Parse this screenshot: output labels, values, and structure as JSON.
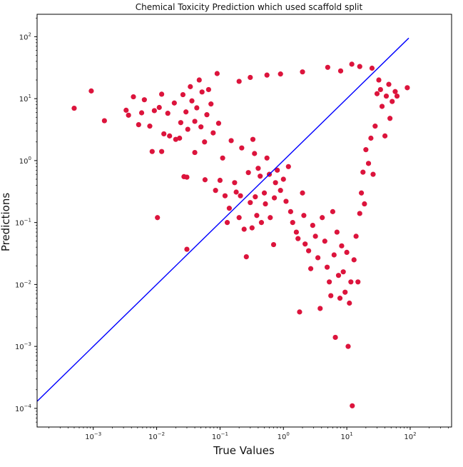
{
  "chart_data": {
    "type": "scatter",
    "title": "Chemical Toxicity Prediction which used scaffold split",
    "xlabel": "True Values",
    "ylabel": "Predictions",
    "x_scale": "log",
    "y_scale": "log",
    "xlim": [
      0.00013,
      450
    ],
    "ylim": [
      5e-05,
      230
    ],
    "x_ticks": [
      {
        "value": 0.001,
        "base": "10",
        "exp": "−3"
      },
      {
        "value": 0.01,
        "base": "10",
        "exp": "−2"
      },
      {
        "value": 0.1,
        "base": "10",
        "exp": "−1"
      },
      {
        "value": 1,
        "base": "10",
        "exp": "0"
      },
      {
        "value": 10,
        "base": "10",
        "exp": "1"
      },
      {
        "value": 100,
        "base": "10",
        "exp": "2"
      }
    ],
    "y_ticks": [
      {
        "value": 0.0001,
        "base": "10",
        "exp": "−4"
      },
      {
        "value": 0.001,
        "base": "10",
        "exp": "−3"
      },
      {
        "value": 0.01,
        "base": "10",
        "exp": "−2"
      },
      {
        "value": 0.1,
        "base": "10",
        "exp": "−1"
      },
      {
        "value": 1,
        "base": "10",
        "exp": "0"
      },
      {
        "value": 10,
        "base": "10",
        "exp": "1"
      },
      {
        "value": 100,
        "base": "10",
        "exp": "2"
      }
    ],
    "grid": false,
    "point_color": "#dc143c",
    "line_color": "#0000ff",
    "reference_line": {
      "x": [
        0.00011,
        95
      ],
      "y": [
        0.00011,
        95
      ]
    },
    "series": [
      {
        "points": [
          [
            0.0005,
            7
          ],
          [
            0.00093,
            13.3
          ],
          [
            0.0015,
            4.4
          ],
          [
            0.0033,
            6.5
          ],
          [
            0.0036,
            5.4
          ],
          [
            0.0043,
            10.7
          ],
          [
            0.0052,
            3.8
          ],
          [
            0.0058,
            5.9
          ],
          [
            0.0064,
            9.6
          ],
          [
            0.0078,
            3.6
          ],
          [
            0.0085,
            1.4
          ],
          [
            0.0092,
            6.4
          ],
          [
            0.0103,
            0.12
          ],
          [
            0.011,
            7.2
          ],
          [
            0.012,
            1.4
          ],
          [
            0.012,
            11.8
          ],
          [
            0.013,
            2.7
          ],
          [
            0.015,
            5.8
          ],
          [
            0.016,
            2.5
          ],
          [
            0.019,
            8.5
          ],
          [
            0.02,
            2.2
          ],
          [
            0.023,
            2.3
          ],
          [
            0.024,
            4.1
          ],
          [
            0.026,
            11.6
          ],
          [
            0.027,
            0.55
          ],
          [
            0.029,
            6.1
          ],
          [
            0.03,
            0.54
          ],
          [
            0.03,
            0.037
          ],
          [
            0.031,
            3.2
          ],
          [
            0.034,
            15.6
          ],
          [
            0.036,
            9.2
          ],
          [
            0.04,
            4.3
          ],
          [
            0.04,
            1.35
          ],
          [
            0.043,
            7.1
          ],
          [
            0.047,
            20
          ],
          [
            0.05,
            3.5
          ],
          [
            0.052,
            12.8
          ],
          [
            0.057,
            2
          ],
          [
            0.058,
            0.49
          ],
          [
            0.062,
            5.5
          ],
          [
            0.066,
            14
          ],
          [
            0.072,
            8.2
          ],
          [
            0.078,
            2.8
          ],
          [
            0.085,
            0.33
          ],
          [
            0.09,
            25.4
          ],
          [
            0.095,
            4
          ],
          [
            0.1,
            0.48
          ],
          [
            0.11,
            1.1
          ],
          [
            0.12,
            0.27
          ],
          [
            0.13,
            0.1
          ],
          [
            0.14,
            0.17
          ],
          [
            0.15,
            2.1
          ],
          [
            0.17,
            0.44
          ],
          [
            0.18,
            0.31
          ],
          [
            0.2,
            0.12
          ],
          [
            0.21,
            0.27
          ],
          [
            0.22,
            1.6
          ],
          [
            0.24,
            0.078
          ],
          [
            0.26,
            0.028
          ],
          [
            0.28,
            0.64
          ],
          [
            0.3,
            0.21
          ],
          [
            0.32,
            0.082
          ],
          [
            0.33,
            2.2
          ],
          [
            0.35,
            1.3
          ],
          [
            0.36,
            0.26
          ],
          [
            0.38,
            0.13
          ],
          [
            0.4,
            0.75
          ],
          [
            0.43,
            0.56
          ],
          [
            0.45,
            0.1
          ],
          [
            0.5,
            0.3
          ],
          [
            0.52,
            0.2
          ],
          [
            0.55,
            1.1
          ],
          [
            0.6,
            0.6
          ],
          [
            0.62,
            0.12
          ],
          [
            0.7,
            0.044
          ],
          [
            0.72,
            0.25
          ],
          [
            0.75,
            0.44
          ],
          [
            0.8,
            0.7
          ],
          [
            0.9,
            0.33
          ],
          [
            1,
            0.5
          ],
          [
            1.1,
            0.22
          ],
          [
            1.2,
            0.8
          ],
          [
            1.3,
            0.15
          ],
          [
            1.4,
            0.1
          ],
          [
            1.6,
            0.07
          ],
          [
            1.7,
            0.055
          ],
          [
            1.8,
            0.0036
          ],
          [
            2,
            0.3
          ],
          [
            2.1,
            0.13
          ],
          [
            2.2,
            0.045
          ],
          [
            2.5,
            0.035
          ],
          [
            2.7,
            0.018
          ],
          [
            2.9,
            0.09
          ],
          [
            3.2,
            0.06
          ],
          [
            3.5,
            0.027
          ],
          [
            3.8,
            0.0041
          ],
          [
            4.1,
            0.12
          ],
          [
            4.5,
            0.05
          ],
          [
            4.9,
            0.019
          ],
          [
            5.3,
            0.011
          ],
          [
            5.6,
            0.0066
          ],
          [
            6,
            0.15
          ],
          [
            6.3,
            0.03
          ],
          [
            6.6,
            0.0014
          ],
          [
            7,
            0.07
          ],
          [
            7.4,
            0.014
          ],
          [
            7.8,
            0.006
          ],
          [
            8.3,
            0.042
          ],
          [
            8.8,
            0.016
          ],
          [
            9.4,
            0.0075
          ],
          [
            10,
            0.033
          ],
          [
            10.5,
            0.001
          ],
          [
            11,
            0.005
          ],
          [
            11.6,
            0.011
          ],
          [
            12.2,
            0.00011
          ],
          [
            13,
            0.025
          ],
          [
            14,
            0.06
          ],
          [
            15,
            0.011
          ],
          [
            16,
            0.14
          ],
          [
            17,
            0.3
          ],
          [
            18,
            0.65
          ],
          [
            19,
            0.2
          ],
          [
            20,
            1.5
          ],
          [
            22,
            0.9
          ],
          [
            24,
            2.3
          ],
          [
            26,
            0.6
          ],
          [
            28,
            3.6
          ],
          [
            30,
            12
          ],
          [
            32,
            20
          ],
          [
            34,
            14
          ],
          [
            36,
            7.5
          ],
          [
            40,
            2.5
          ],
          [
            42,
            11
          ],
          [
            46,
            17
          ],
          [
            48,
            4.8
          ],
          [
            52,
            9
          ],
          [
            58,
            13
          ],
          [
            62,
            11
          ],
          [
            90,
            15
          ],
          [
            5,
            32
          ],
          [
            12,
            36
          ],
          [
            16,
            33
          ],
          [
            25,
            31
          ],
          [
            8,
            28
          ],
          [
            2,
            27
          ],
          [
            0.9,
            25
          ],
          [
            0.55,
            24
          ],
          [
            0.3,
            22
          ],
          [
            0.2,
            19
          ]
        ]
      }
    ]
  }
}
